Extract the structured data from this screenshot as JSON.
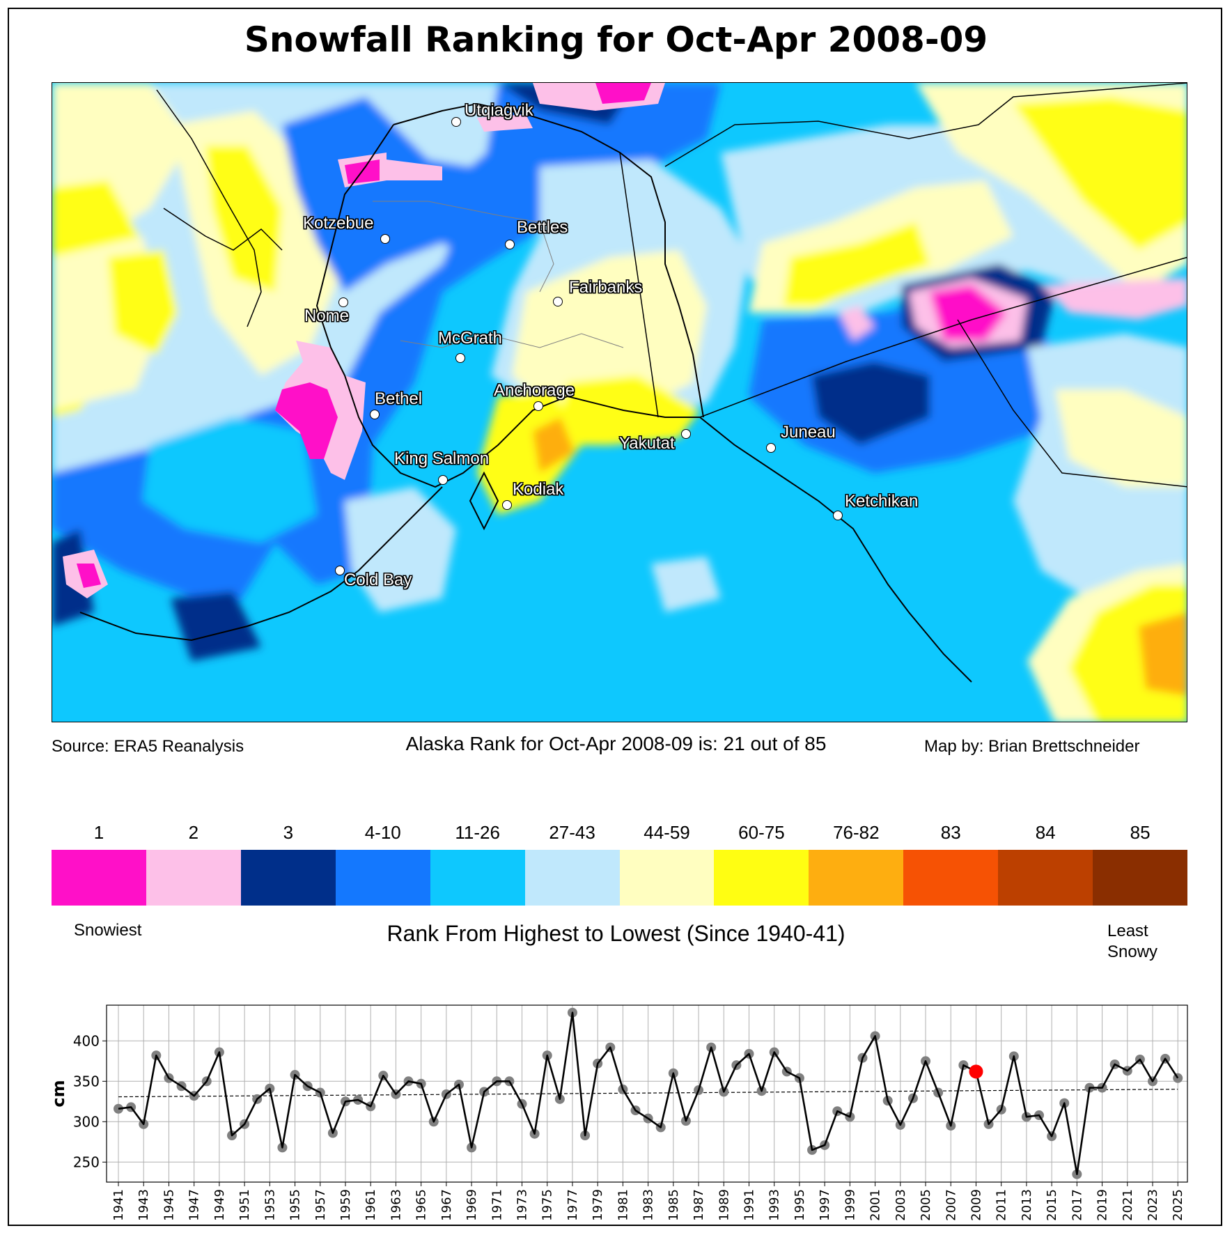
{
  "title": "Snowfall Ranking for Oct-Apr 2008-09",
  "map": {
    "cities": [
      {
        "name": "Utqiaġvik"
      },
      {
        "name": "Kotzebue"
      },
      {
        "name": "Bettles"
      },
      {
        "name": "Nome"
      },
      {
        "name": "Fairbanks"
      },
      {
        "name": "McGrath"
      },
      {
        "name": "Bethel"
      },
      {
        "name": "Anchorage"
      },
      {
        "name": "Yakutat"
      },
      {
        "name": "Juneau"
      },
      {
        "name": "King Salmon"
      },
      {
        "name": "Kodiak"
      },
      {
        "name": "Ketchikan"
      },
      {
        "name": "Cold Bay"
      }
    ]
  },
  "captions": {
    "source": "Source: ERA5 Reanalysis",
    "rank": "Alaska Rank for Oct-Apr 2008-09 is: 21 out of 85",
    "credit": "Map by: Brian Brettschneider"
  },
  "legend": {
    "bins": [
      {
        "label": "1",
        "color": "#ff10c8"
      },
      {
        "label": "2",
        "color": "#fdc0e8"
      },
      {
        "label": "3",
        "color": "#002f8a"
      },
      {
        "label": "4-10",
        "color": "#1478fe"
      },
      {
        "label": "11-26",
        "color": "#0ec8fe"
      },
      {
        "label": "27-43",
        "color": "#c0e8fc"
      },
      {
        "label": "44-59",
        "color": "#fffec0"
      },
      {
        "label": "60-75",
        "color": "#fffe12"
      },
      {
        "label": "76-82",
        "color": "#feae10"
      },
      {
        "label": "83",
        "color": "#f65204"
      },
      {
        "label": "84",
        "color": "#bc4000"
      },
      {
        "label": "85",
        "color": "#8a2e00"
      }
    ],
    "left_label": "Snowiest",
    "center_label": "Rank From Highest to Lowest (Since 1940-41)",
    "right_label_line1": "Least",
    "right_label_line2": "Snowy"
  },
  "chart_data": {
    "type": "line",
    "title": "",
    "xlabel": "",
    "ylabel": "cm",
    "ylim": [
      225,
      445
    ],
    "xlim": [
      1940,
      2026
    ],
    "yticks": [
      250,
      300,
      350,
      400
    ],
    "xticks": [
      1941,
      1943,
      1945,
      1947,
      1949,
      1951,
      1953,
      1955,
      1957,
      1959,
      1961,
      1963,
      1965,
      1967,
      1969,
      1971,
      1973,
      1975,
      1977,
      1979,
      1981,
      1983,
      1985,
      1987,
      1989,
      1991,
      1993,
      1995,
      1997,
      1999,
      2001,
      2003,
      2005,
      2007,
      2009,
      2011,
      2013,
      2015,
      2017,
      2019,
      2021,
      2023,
      2025
    ],
    "grid": true,
    "x": [
      1941,
      1942,
      1943,
      1944,
      1945,
      1946,
      1947,
      1948,
      1949,
      1950,
      1951,
      1952,
      1953,
      1954,
      1955,
      1956,
      1957,
      1958,
      1959,
      1960,
      1961,
      1962,
      1963,
      1964,
      1965,
      1966,
      1967,
      1968,
      1969,
      1970,
      1971,
      1972,
      1973,
      1974,
      1975,
      1976,
      1977,
      1978,
      1979,
      1980,
      1981,
      1982,
      1983,
      1984,
      1985,
      1986,
      1987,
      1988,
      1989,
      1990,
      1991,
      1992,
      1993,
      1994,
      1995,
      1996,
      1997,
      1998,
      1999,
      2000,
      2001,
      2002,
      2003,
      2004,
      2005,
      2006,
      2007,
      2008,
      2009,
      2010,
      2011,
      2012,
      2013,
      2014,
      2015,
      2016,
      2017,
      2018,
      2019,
      2020,
      2021,
      2022,
      2023,
      2024,
      2025
    ],
    "series": [
      {
        "name": "Oct-Apr snowfall",
        "color": "#000000",
        "marker_color": "#808080",
        "values": [
          316,
          318,
          297,
          382,
          354,
          344,
          332,
          350,
          386,
          283,
          297,
          328,
          341,
          268,
          358,
          344,
          336,
          286,
          325,
          327,
          319,
          357,
          334,
          350,
          347,
          300,
          334,
          346,
          268,
          337,
          350,
          350,
          322,
          285,
          382,
          328,
          435,
          283,
          372,
          392,
          340,
          314,
          304,
          293,
          360,
          301,
          339,
          392,
          337,
          370,
          384,
          338,
          386,
          362,
          354,
          265,
          271,
          313,
          306,
          379,
          406,
          326,
          296,
          329,
          375,
          336,
          295,
          370,
          362,
          297,
          315,
          381,
          306,
          308,
          282,
          323,
          235,
          342,
          342,
          371,
          363,
          377,
          350,
          378,
          354
        ]
      },
      {
        "name": "Trend",
        "style": "dashed",
        "color": "#000000",
        "values_at_ends": [
          330.8,
          340.2
        ]
      }
    ],
    "highlight": {
      "x": 2009,
      "value": 362,
      "color": "#ff0000"
    }
  }
}
